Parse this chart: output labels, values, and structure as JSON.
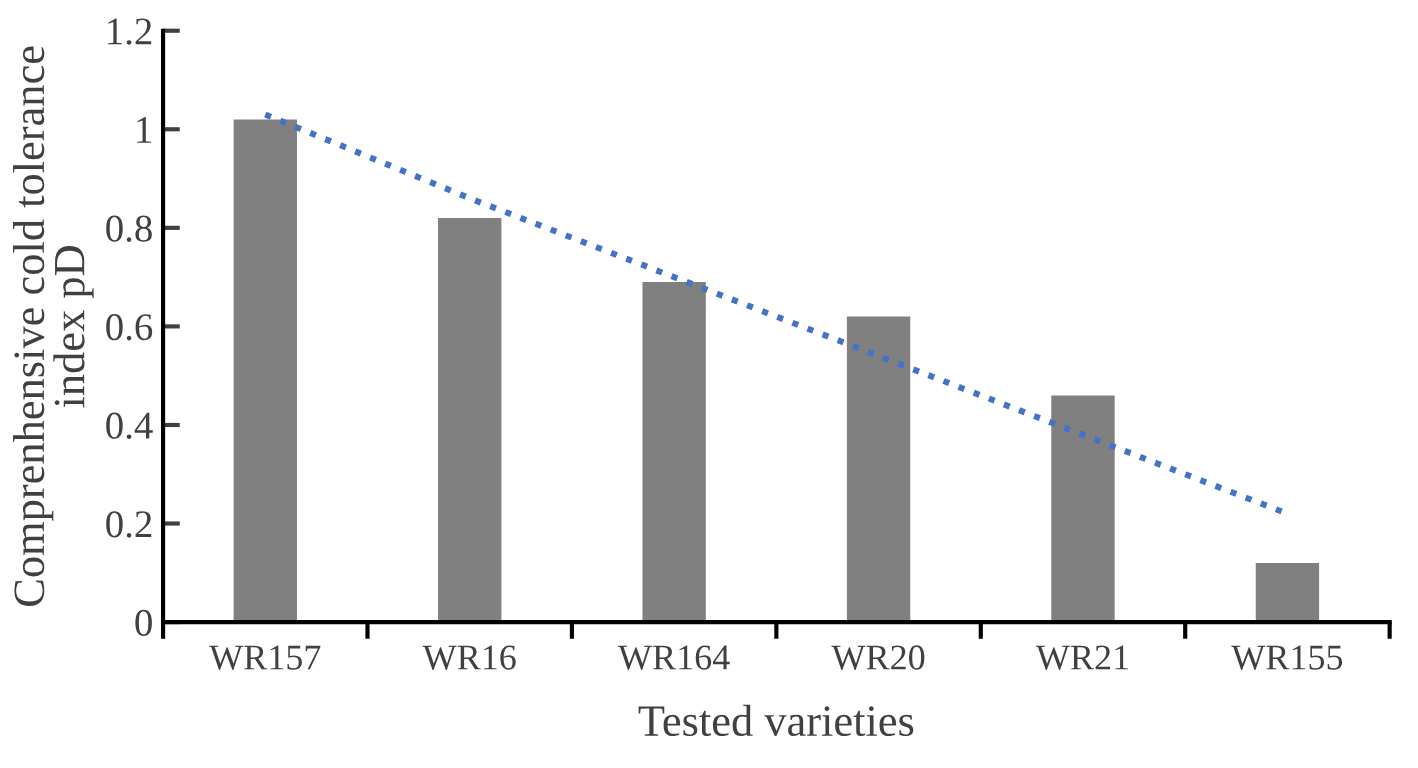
{
  "chart_data": {
    "type": "bar",
    "xlabel": "Tested varieties",
    "ylabel": "Comprenhensive cold tolerance\nindex pD",
    "categories": [
      "WR157",
      "WR16",
      "WR164",
      "WR20",
      "WR21",
      "WR155"
    ],
    "series": [
      {
        "color": "#808080",
        "values": [
          1.02,
          0.82,
          0.69,
          0.62,
          0.46,
          0.12
        ]
      },
      {
        "type": "line",
        "color": "#4472c4",
        "line_style": "dotted",
        "values": [
          1.03,
          0.86,
          0.7,
          0.54,
          0.38,
          0.22
        ]
      }
    ],
    "ylim": [
      0,
      1.2
    ],
    "yticks": [
      0,
      0.2,
      0.4,
      0.6,
      0.8,
      1,
      1.2
    ],
    "grid": false,
    "legend": false
  }
}
